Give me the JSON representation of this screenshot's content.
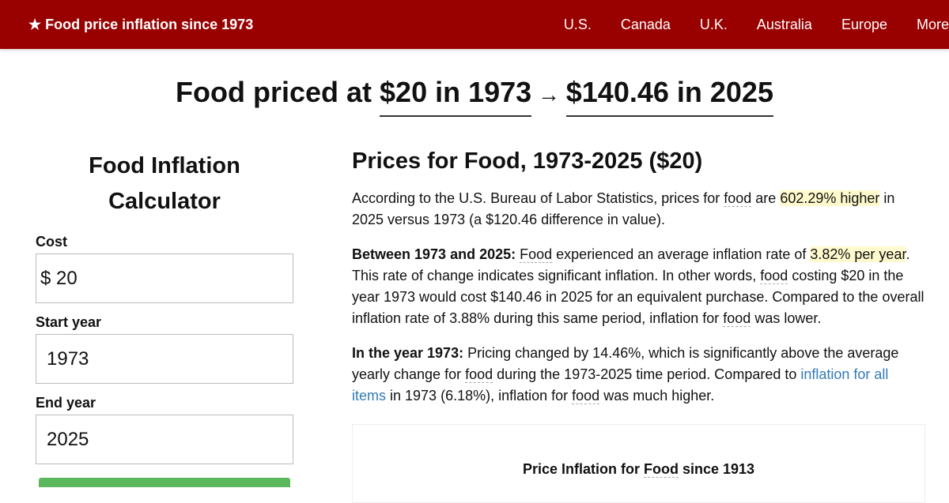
{
  "nav": {
    "brand": "★ Food price inflation since 1973",
    "links": [
      "U.S.",
      "Canada",
      "U.K.",
      "Australia",
      "Europe",
      "More"
    ]
  },
  "headline": {
    "prefix": "Food priced at ",
    "start": "$20 in 1973",
    "arrow": " → ",
    "end": "$140.46 in 2025"
  },
  "calculator": {
    "title": "Food Inflation Calculator",
    "cost_label": "Cost",
    "currency": "$",
    "cost": "20",
    "start_label": "Start year",
    "start": "1973",
    "end_label": "End year",
    "end": "2025"
  },
  "main": {
    "title": "Prices for Food, 1973-2025 ($20)",
    "p1": {
      "a": "According to the U.S. Bureau of Labor Statistics, prices for ",
      "food": "food",
      "b": " are ",
      "hl": "602.29% higher",
      "c": " in 2025 versus 1973 (a $120.46 difference in value)."
    },
    "p2": {
      "bold": "Between 1973 and 2025:",
      "food1": "Food",
      "a": " experienced an average inflation rate of ",
      "hl": "3.82% per year",
      "b": ". This rate of change indicates significant inflation. In other words, ",
      "food2": "food",
      "c": " costing $20 in the year 1973 would cost $140.46 in 2025 for an equivalent purchase. Compared to the overall inflation rate of 3.88% during this same period, inflation for ",
      "food3": "food",
      "d": " was lower."
    },
    "p3": {
      "bold": "In the year 1973:",
      "a": " Pricing changed by 14.46%, which is significantly above the average yearly change for ",
      "food1": "food",
      "b": " during the 1973-2025 time period. Compared to ",
      "link": "inflation for all items",
      "c": " in 1973 (6.18%), inflation for ",
      "food2": "food",
      "d": " was much higher."
    },
    "chart_title": {
      "a": "Price Inflation for ",
      "food": "Food",
      "b": " since 1913"
    }
  }
}
